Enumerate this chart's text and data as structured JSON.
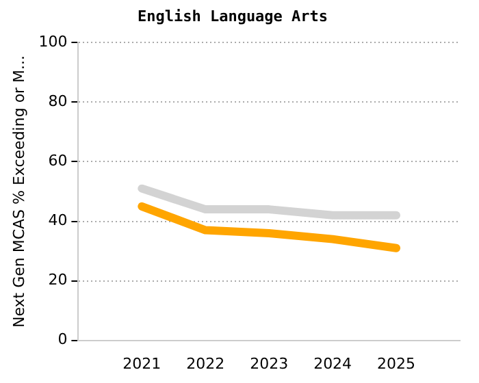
{
  "chart_data": {
    "type": "line",
    "title": "English Language Arts",
    "ylabel": "Next Gen MCAS % Exceeding or M...",
    "categories": [
      "2021",
      "2022",
      "2023",
      "2024",
      "2025"
    ],
    "series": [
      {
        "color": "#d3d3d3",
        "values": [
          51,
          44,
          44,
          42,
          42
        ]
      },
      {
        "color": "#ffa500",
        "values": [
          45,
          37,
          36,
          34,
          31
        ]
      }
    ],
    "ylim": [
      0,
      100
    ],
    "yticks": [
      0,
      20,
      40,
      60,
      80,
      100
    ],
    "grid": "y",
    "legend": false,
    "marker": "none",
    "line_style": "solid"
  }
}
